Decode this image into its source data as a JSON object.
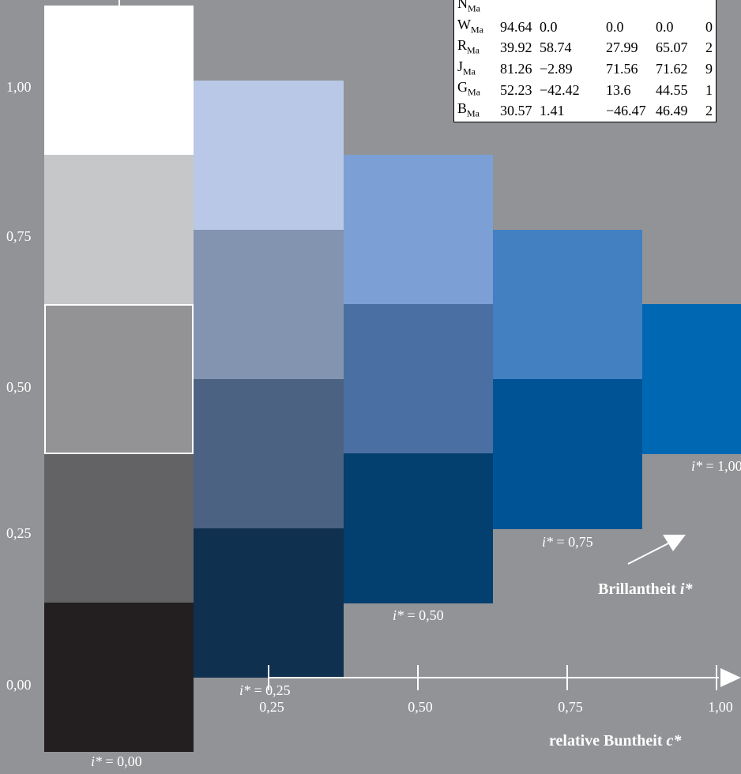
{
  "axis": {
    "y_ticks": [
      "1,00",
      "0,75",
      "0,50",
      "0,25",
      "0,00"
    ],
    "x_ticks": [
      "0,25",
      "0,50",
      "0,75",
      "1,00"
    ],
    "x_caption_text": "relative Buntheit ",
    "x_caption_var": "c*",
    "diag_caption_text": "Brillantheit ",
    "diag_caption_var": "i*"
  },
  "columns": [
    {
      "label": "i* = 0,00",
      "swatches": [
        "#ffffff",
        "#c6c7c9",
        "#939396",
        "#636365",
        "#231f20"
      ],
      "outlined_index": 2
    },
    {
      "label": "i* = 0,25",
      "swatches": [
        "#b8c8e6",
        "#8394b1",
        "#4c6282",
        "#10304f"
      ]
    },
    {
      "label": "i* = 0,50",
      "swatches": [
        "#7c9fd5",
        "#4a6fa2",
        "#033f6f"
      ]
    },
    {
      "label": "i* = 0,75",
      "swatches": [
        "#4280c1",
        "#005495"
      ]
    },
    {
      "label": "i* = 1,00",
      "swatches": [
        "#0068b3"
      ]
    }
  ],
  "table": {
    "rows": [
      {
        "name": "N",
        "sub": "Ma",
        "values": [
          "",
          "",
          "",
          "",
          ""
        ]
      },
      {
        "name": "W",
        "sub": "Ma",
        "values": [
          "94.64",
          "0.0",
          "0.0",
          "0.0",
          "0"
        ]
      },
      {
        "name": "R",
        "sub": "Ma",
        "values": [
          "39.92",
          "58.74",
          "27.99",
          "65.07",
          "2"
        ]
      },
      {
        "name": "J",
        "sub": "Ma",
        "values": [
          "81.26",
          "−2.89",
          "71.56",
          "71.62",
          "9"
        ]
      },
      {
        "name": "G",
        "sub": "Ma",
        "values": [
          "52.23",
          "−42.42",
          "13.6",
          "44.55",
          "1"
        ]
      },
      {
        "name": "B",
        "sub": "Ma",
        "values": [
          "30.57",
          "1.41",
          "−46.47",
          "46.49",
          "2"
        ]
      }
    ]
  }
}
